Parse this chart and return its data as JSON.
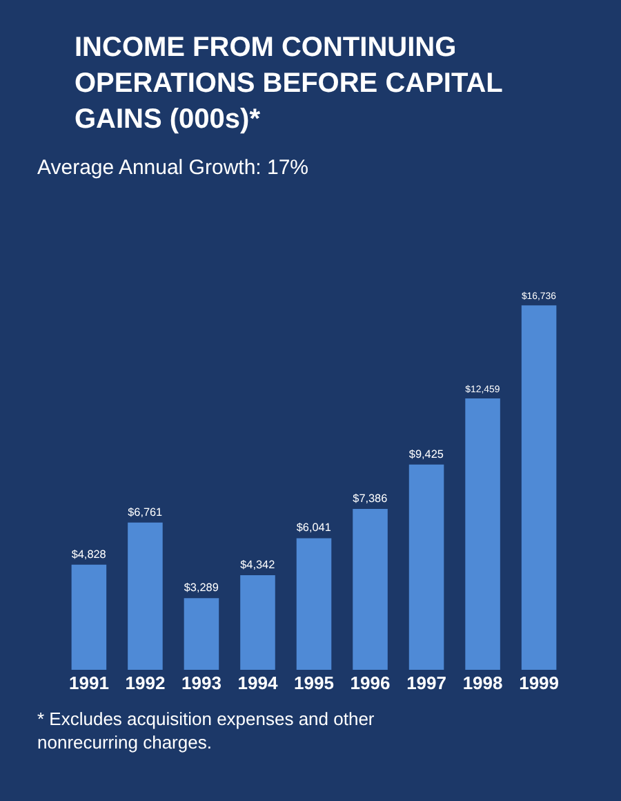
{
  "chart_data": {
    "type": "bar",
    "title": "INCOME FROM CONTINUING OPERATIONS BEFORE CAPITAL GAINS (000s)*",
    "subtitle": "Average Annual Growth: 17%",
    "categories": [
      "1991",
      "1992",
      "1993",
      "1994",
      "1995",
      "1996",
      "1997",
      "1998",
      "1999"
    ],
    "values": [
      4828,
      6761,
      3289,
      4342,
      6041,
      7386,
      9425,
      12459,
      16736
    ],
    "value_labels": [
      "$4,828",
      "$6,761",
      "$3,289",
      "$4,342",
      "$6,041",
      "$7,386",
      "$9,425",
      "$12,459",
      "$16,736"
    ],
    "color": "#4f8ad6",
    "tick_labels": "x",
    "grid": false,
    "legend": false,
    "annotations": [
      "* Excludes acquisition expenses and other nonrecurring charges."
    ]
  }
}
